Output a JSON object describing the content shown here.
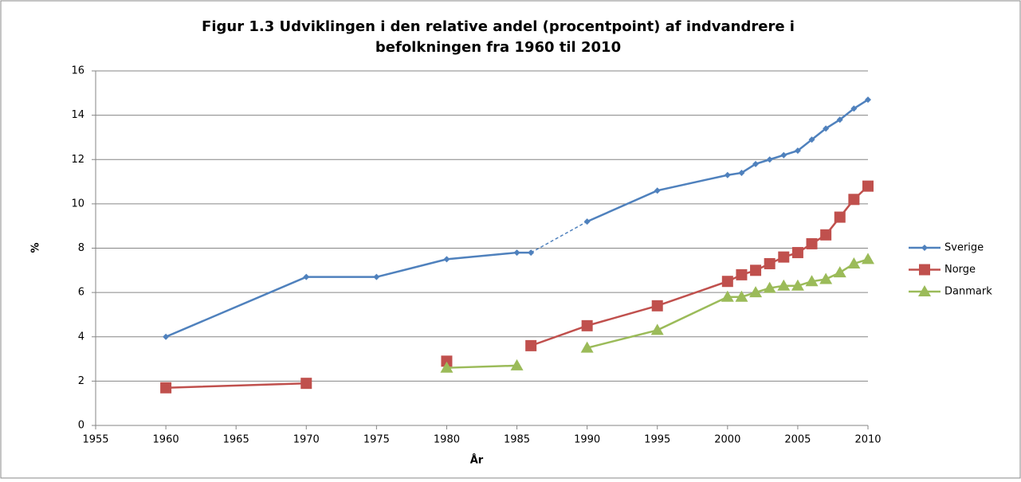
{
  "chart_data": {
    "type": "line",
    "title": [
      "Figur 1.3 Udviklingen i den relative andel (procentpoint) af indvandrere i",
      "befolkningen fra 1960 til 2010"
    ],
    "x_label": "År",
    "y_label": "%",
    "x": [
      1960,
      1970,
      1975,
      1980,
      1985,
      1986,
      1990,
      1995,
      2000,
      2001,
      2002,
      2003,
      2004,
      2005,
      2006,
      2007,
      2008,
      2009,
      2010
    ],
    "series": [
      {
        "name": "Sverige",
        "color": "#4f81bd",
        "marker": "diamond",
        "dashed": [
          [
            1986,
            1990
          ]
        ],
        "values": [
          4.0,
          6.7,
          6.7,
          7.5,
          7.8,
          7.8,
          9.2,
          10.6,
          11.3,
          11.4,
          11.8,
          12.0,
          12.2,
          12.4,
          12.9,
          13.4,
          13.8,
          14.3,
          14.7
        ]
      },
      {
        "name": "Norge",
        "color": "#c0504d",
        "marker": "square",
        "values": [
          1.7,
          1.9,
          null,
          2.9,
          null,
          3.6,
          4.5,
          5.4,
          6.5,
          6.8,
          7.0,
          7.3,
          7.6,
          7.8,
          8.2,
          8.6,
          9.4,
          10.2,
          10.8
        ]
      },
      {
        "name": "Danmark",
        "color": "#9bbb59",
        "marker": "triangle",
        "values": [
          null,
          null,
          null,
          2.6,
          2.7,
          null,
          3.5,
          4.3,
          5.8,
          5.8,
          6.0,
          6.2,
          6.3,
          6.3,
          6.5,
          6.6,
          6.9,
          7.3,
          7.5
        ]
      }
    ],
    "xlim": [
      1955,
      2010
    ],
    "xticks": [
      1955,
      1960,
      1965,
      1970,
      1975,
      1980,
      1985,
      1990,
      1995,
      2000,
      2005,
      2010
    ],
    "ylim": [
      0,
      16
    ],
    "yticks": [
      0,
      2,
      4,
      6,
      8,
      10,
      12,
      14,
      16
    ],
    "grid": true,
    "legend": "right"
  }
}
